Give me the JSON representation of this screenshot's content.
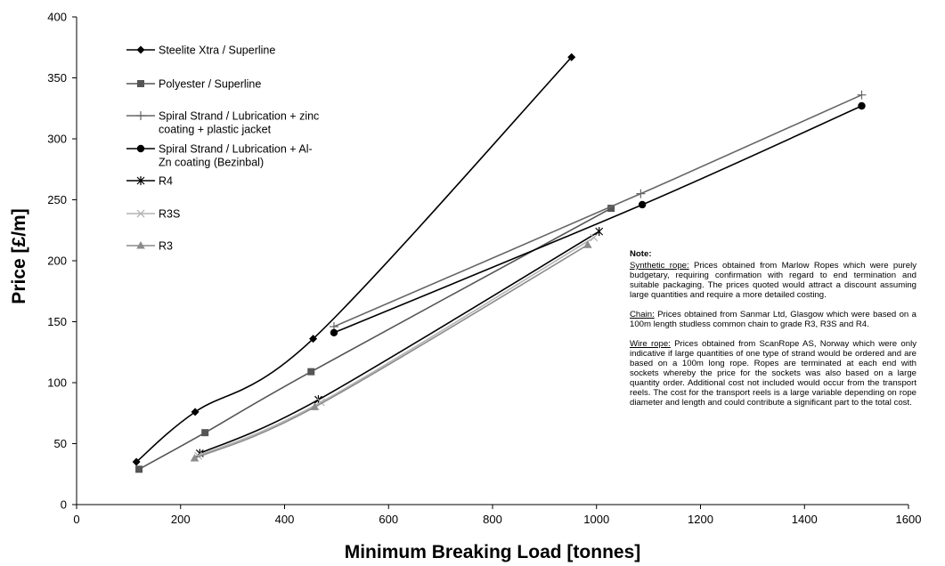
{
  "chart_data": {
    "type": "line",
    "xlabel": "Minimum Breaking Load [tonnes]",
    "ylabel": "Price [£/m]",
    "xlim": [
      0,
      1600
    ],
    "ylim": [
      0,
      400
    ],
    "x_ticks": [
      "0",
      "200",
      "400",
      "600",
      "800",
      "1000",
      "1200",
      "1400",
      "1600"
    ],
    "y_ticks": [
      "0",
      "50",
      "100",
      "150",
      "200",
      "250",
      "300",
      "350",
      "400"
    ],
    "grid": false,
    "legend_position": "top-left",
    "series": [
      {
        "name": "Steelite Xtra / Superline",
        "marker": "diamond",
        "color": "#000000",
        "x": [
          115,
          228,
          455,
          952
        ],
        "y": [
          35,
          76,
          136,
          367
        ]
      },
      {
        "name": "Polyester / Superline",
        "marker": "square",
        "color": "#555555",
        "x": [
          120,
          247,
          451,
          1028
        ],
        "y": [
          29,
          59,
          109,
          243
        ]
      },
      {
        "name": "Spiral Strand / Lubrication + zinc coating + plastic jacket",
        "marker": "plus",
        "color": "#666666",
        "x": [
          495,
          1085,
          1510
        ],
        "y": [
          146,
          255,
          336
        ]
      },
      {
        "name": "Spiral Strand / Lubrication + Al-Zn coating (Bezinbal)",
        "marker": "circle",
        "color": "#000000",
        "x": [
          495,
          1088,
          1510
        ],
        "y": [
          141,
          246,
          327
        ]
      },
      {
        "name": "R4",
        "marker": "star",
        "color": "#000000",
        "x": [
          237,
          465,
          1005
        ],
        "y": [
          42,
          86,
          224
        ]
      },
      {
        "name": "R3S",
        "marker": "x",
        "color": "#b4b4b4",
        "x": [
          234,
          470,
          995
        ],
        "y": [
          40,
          84,
          219
        ]
      },
      {
        "name": "R3",
        "marker": "triangle",
        "color": "#8c8c8c",
        "x": [
          227,
          458,
          983
        ],
        "y": [
          38,
          80,
          213
        ]
      }
    ],
    "legend_labels": [
      [
        "Steelite Xtra / Superline"
      ],
      [
        "Polyester / Superline"
      ],
      [
        "Spiral Strand / Lubrication + zinc",
        "coating + plastic jacket"
      ],
      [
        "Spiral Strand / Lubrication + Al-",
        "Zn coating (Bezinbal)"
      ],
      [
        "R4"
      ],
      [
        "R3S"
      ],
      [
        "R3"
      ]
    ]
  },
  "note": {
    "title": "Note:",
    "synthetic_label": "Synthetic rope:",
    "synthetic_text": " Prices obtained from Marlow Ropes which were purely budgetary, requiring confirmation with regard to end termination and suitable packaging. The prices quoted would attract a discount assuming large quantities and require a more detailed costing.",
    "chain_label": "Chain:",
    "chain_text": " Prices obtained from Sanmar Ltd, Glasgow which were based on a 100m length studless common chain to grade R3, R3S and R4.",
    "wire_label": "Wire rope:",
    "wire_text": " Prices obtained from ScanRope AS, Norway which were only indicative if large quantities of one type of strand would be ordered and are based on a 100m long rope. Ropes are terminated at each end with sockets whereby the price for the sockets was also based on a large quantity order. Additional cost not included would occur from the transport reels. The cost for the transport reels is a large variable depending on rope diameter and length and could contribute a significant part to the total cost."
  }
}
